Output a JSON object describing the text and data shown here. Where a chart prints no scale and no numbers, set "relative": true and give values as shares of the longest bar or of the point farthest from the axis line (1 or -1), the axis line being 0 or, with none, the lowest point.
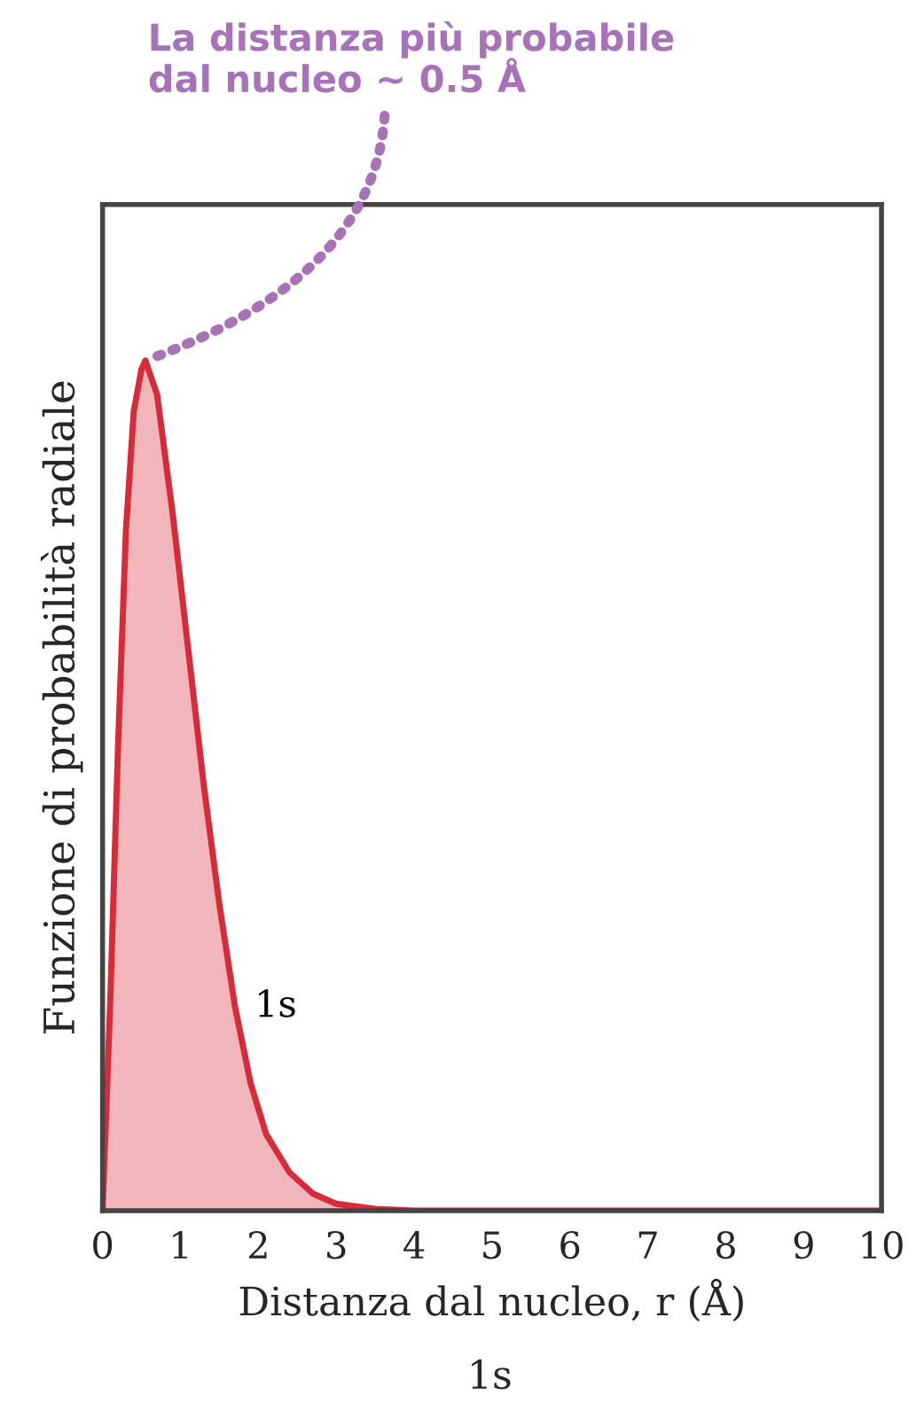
{
  "chart_data": {
    "type": "area",
    "relative": true,
    "xlabel": "Distanza dal nucleo, r (Å)",
    "ylabel": "Funzione di probabilità radiale",
    "x": [
      0,
      0.1,
      0.2,
      0.3,
      0.4,
      0.5,
      0.55,
      0.7,
      0.9,
      1.1,
      1.3,
      1.5,
      1.7,
      1.9,
      2.1,
      2.4,
      2.7,
      3,
      3.5,
      4,
      10
    ],
    "series": [
      {
        "name": "1s",
        "color": "#d62c3a",
        "values": [
          0,
          0.25,
          0.55,
          0.8,
          0.94,
          0.99,
          1,
          0.96,
          0.82,
          0.66,
          0.5,
          0.36,
          0.24,
          0.15,
          0.09,
          0.045,
          0.02,
          0.008,
          0.002,
          0,
          0
        ]
      }
    ],
    "xlim": [
      0,
      10
    ],
    "xticks": [
      0,
      1,
      2,
      3,
      4,
      5,
      6,
      7,
      8,
      9,
      10
    ],
    "annotations": [
      {
        "text": "La distanza più probabile\ndal nucleo ~ 0.5 Å",
        "x": 0.55,
        "y": 1
      },
      "1s"
    ],
    "grid": false,
    "legend": false
  }
}
